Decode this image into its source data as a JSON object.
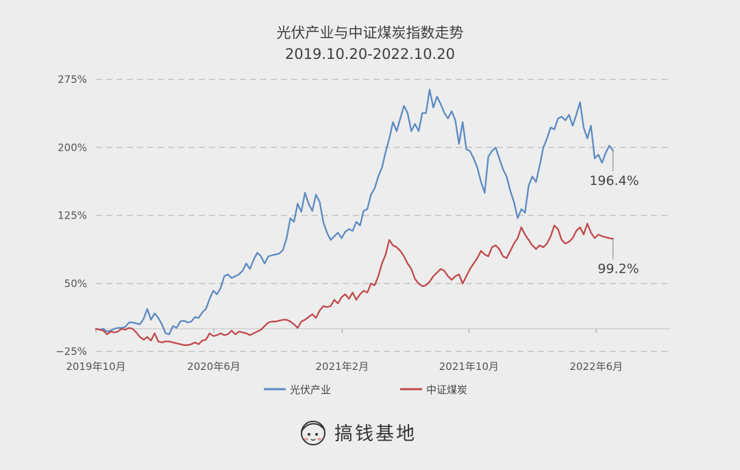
{
  "chart_data": {
    "type": "line",
    "title": "光伏产业与中证煤炭指数走势",
    "subtitle": "2019.10.20-2022.10.20",
    "xlabel": "",
    "ylabel": "",
    "ylim": [
      -25,
      275
    ],
    "yticks": [
      -25,
      50,
      125,
      200,
      275
    ],
    "ytick_labels": [
      "−25%",
      "50%",
      "125%",
      "200%",
      "275%"
    ],
    "xlim": [
      "2019-10-20",
      "2022-10-20"
    ],
    "xtick_dates": [
      "2019-10-20",
      "2020-06-01",
      "2021-02-01",
      "2021-10-01",
      "2022-06-01"
    ],
    "xtick_labels": [
      "2019年10月",
      "2020年6月",
      "2021年2月",
      "2021年10月",
      "2022年6月"
    ],
    "grid": "horizontal-dashed",
    "legend_position": "bottom",
    "series": [
      {
        "name": "光伏产业",
        "color": "#5b8ac2",
        "end_label": "196.4%",
        "points": [
          [
            "2019-10-20",
            0
          ],
          [
            "2019-10-27",
            -1
          ],
          [
            "2019-11-03",
            0
          ],
          [
            "2019-11-10",
            -3
          ],
          [
            "2019-11-17",
            -2
          ],
          [
            "2019-11-24",
            0
          ],
          [
            "2019-12-01",
            1
          ],
          [
            "2019-12-08",
            1
          ],
          [
            "2019-12-15",
            2
          ],
          [
            "2019-12-22",
            7
          ],
          [
            "2019-12-29",
            7
          ],
          [
            "2020-01-05",
            6
          ],
          [
            "2020-01-12",
            5
          ],
          [
            "2020-01-19",
            11
          ],
          [
            "2020-01-26",
            22
          ],
          [
            "2020-02-02",
            10
          ],
          [
            "2020-02-09",
            17
          ],
          [
            "2020-02-16",
            12
          ],
          [
            "2020-02-23",
            5
          ],
          [
            "2020-03-01",
            -5
          ],
          [
            "2020-03-08",
            -6
          ],
          [
            "2020-03-15",
            3
          ],
          [
            "2020-03-22",
            1
          ],
          [
            "2020-03-29",
            8
          ],
          [
            "2020-04-05",
            9
          ],
          [
            "2020-04-12",
            7
          ],
          [
            "2020-04-19",
            8
          ],
          [
            "2020-04-26",
            13
          ],
          [
            "2020-05-03",
            12
          ],
          [
            "2020-05-10",
            18
          ],
          [
            "2020-05-17",
            22
          ],
          [
            "2020-05-24",
            33
          ],
          [
            "2020-05-31",
            42
          ],
          [
            "2020-06-07",
            38
          ],
          [
            "2020-06-14",
            45
          ],
          [
            "2020-06-21",
            58
          ],
          [
            "2020-06-28",
            60
          ],
          [
            "2020-07-05",
            56
          ],
          [
            "2020-07-12",
            58
          ],
          [
            "2020-07-19",
            60
          ],
          [
            "2020-07-26",
            64
          ],
          [
            "2020-08-02",
            72
          ],
          [
            "2020-08-09",
            66
          ],
          [
            "2020-08-16",
            76
          ],
          [
            "2020-08-23",
            84
          ],
          [
            "2020-08-30",
            80
          ],
          [
            "2020-09-06",
            72
          ],
          [
            "2020-09-13",
            80
          ],
          [
            "2020-09-20",
            81
          ],
          [
            "2020-09-27",
            82
          ],
          [
            "2020-10-04",
            83
          ],
          [
            "2020-10-11",
            87
          ],
          [
            "2020-10-18",
            100
          ],
          [
            "2020-10-25",
            122
          ],
          [
            "2020-11-01",
            118
          ],
          [
            "2020-11-08",
            138
          ],
          [
            "2020-11-15",
            129
          ],
          [
            "2020-11-22",
            150
          ],
          [
            "2020-11-29",
            138
          ],
          [
            "2020-12-06",
            130
          ],
          [
            "2020-12-13",
            148
          ],
          [
            "2020-12-20",
            140
          ],
          [
            "2020-12-27",
            118
          ],
          [
            "2021-01-03",
            106
          ],
          [
            "2021-01-10",
            98
          ],
          [
            "2021-01-17",
            102
          ],
          [
            "2021-01-24",
            106
          ],
          [
            "2021-01-31",
            100
          ],
          [
            "2021-02-07",
            107
          ],
          [
            "2021-02-14",
            110
          ],
          [
            "2021-02-21",
            108
          ],
          [
            "2021-02-28",
            118
          ],
          [
            "2021-03-07",
            114
          ],
          [
            "2021-03-14",
            130
          ],
          [
            "2021-03-21",
            132
          ],
          [
            "2021-03-28",
            148
          ],
          [
            "2021-04-04",
            155
          ],
          [
            "2021-04-11",
            168
          ],
          [
            "2021-04-18",
            178
          ],
          [
            "2021-04-25",
            195
          ],
          [
            "2021-05-02",
            210
          ],
          [
            "2021-05-09",
            228
          ],
          [
            "2021-05-16",
            218
          ],
          [
            "2021-05-23",
            232
          ],
          [
            "2021-05-30",
            246
          ],
          [
            "2021-06-06",
            238
          ],
          [
            "2021-06-13",
            218
          ],
          [
            "2021-06-20",
            226
          ],
          [
            "2021-06-27",
            218
          ],
          [
            "2021-07-04",
            238
          ],
          [
            "2021-07-11",
            238
          ],
          [
            "2021-07-18",
            264
          ],
          [
            "2021-07-25",
            244
          ],
          [
            "2021-08-01",
            256
          ],
          [
            "2021-08-08",
            248
          ],
          [
            "2021-08-15",
            238
          ],
          [
            "2021-08-22",
            232
          ],
          [
            "2021-08-29",
            240
          ],
          [
            "2021-09-05",
            230
          ],
          [
            "2021-09-12",
            204
          ],
          [
            "2021-09-19",
            228
          ],
          [
            "2021-09-26",
            198
          ],
          [
            "2021-10-03",
            196
          ],
          [
            "2021-10-10",
            188
          ],
          [
            "2021-10-17",
            178
          ],
          [
            "2021-10-24",
            162
          ],
          [
            "2021-10-31",
            150
          ],
          [
            "2021-11-07",
            190
          ],
          [
            "2021-11-14",
            196
          ],
          [
            "2021-11-21",
            200
          ],
          [
            "2021-11-28",
            188
          ],
          [
            "2021-12-05",
            176
          ],
          [
            "2021-12-12",
            168
          ],
          [
            "2021-12-19",
            152
          ],
          [
            "2021-12-26",
            140
          ],
          [
            "2022-01-02",
            122
          ],
          [
            "2022-01-09",
            132
          ],
          [
            "2022-01-16",
            128
          ],
          [
            "2022-01-23",
            158
          ],
          [
            "2022-01-30",
            168
          ],
          [
            "2022-02-06",
            162
          ],
          [
            "2022-02-13",
            180
          ],
          [
            "2022-02-20",
            200
          ],
          [
            "2022-02-27",
            210
          ],
          [
            "2022-03-06",
            222
          ],
          [
            "2022-03-13",
            220
          ],
          [
            "2022-03-20",
            232
          ],
          [
            "2022-03-27",
            234
          ],
          [
            "2022-04-03",
            230
          ],
          [
            "2022-04-10",
            236
          ],
          [
            "2022-04-17",
            224
          ],
          [
            "2022-04-24",
            236
          ],
          [
            "2022-05-01",
            250
          ],
          [
            "2022-05-08",
            222
          ],
          [
            "2022-05-15",
            210
          ],
          [
            "2022-05-22",
            224
          ],
          [
            "2022-05-29",
            188
          ],
          [
            "2022-06-05",
            192
          ],
          [
            "2022-06-12",
            183
          ],
          [
            "2022-06-19",
            194
          ],
          [
            "2022-06-26",
            202
          ],
          [
            "2022-07-03",
            196.4
          ]
        ]
      },
      {
        "name": "中证煤炭",
        "color": "#c1494a",
        "end_label": "99.2%",
        "points": [
          [
            "2019-10-20",
            0
          ],
          [
            "2019-10-27",
            -1
          ],
          [
            "2019-11-03",
            -2
          ],
          [
            "2019-11-10",
            -6
          ],
          [
            "2019-11-17",
            -3
          ],
          [
            "2019-11-24",
            -4
          ],
          [
            "2019-12-01",
            -3
          ],
          [
            "2019-12-08",
            0
          ],
          [
            "2019-12-15",
            -1
          ],
          [
            "2019-12-22",
            1
          ],
          [
            "2019-12-29",
            0
          ],
          [
            "2020-01-05",
            -4
          ],
          [
            "2020-01-12",
            -9
          ],
          [
            "2020-01-19",
            -12
          ],
          [
            "2020-01-26",
            -9
          ],
          [
            "2020-02-02",
            -13
          ],
          [
            "2020-02-09",
            -5
          ],
          [
            "2020-02-16",
            -14
          ],
          [
            "2020-02-23",
            -15
          ],
          [
            "2020-03-01",
            -14
          ],
          [
            "2020-03-08",
            -14
          ],
          [
            "2020-03-15",
            -15
          ],
          [
            "2020-03-22",
            -16
          ],
          [
            "2020-03-29",
            -17
          ],
          [
            "2020-04-05",
            -18
          ],
          [
            "2020-04-12",
            -18
          ],
          [
            "2020-04-19",
            -17
          ],
          [
            "2020-04-26",
            -15
          ],
          [
            "2020-05-03",
            -17
          ],
          [
            "2020-05-10",
            -13
          ],
          [
            "2020-05-17",
            -12
          ],
          [
            "2020-05-24",
            -5
          ],
          [
            "2020-05-31",
            -8
          ],
          [
            "2020-06-07",
            -7
          ],
          [
            "2020-06-14",
            -5
          ],
          [
            "2020-06-21",
            -7
          ],
          [
            "2020-06-28",
            -6
          ],
          [
            "2020-07-05",
            -2
          ],
          [
            "2020-07-12",
            -6
          ],
          [
            "2020-07-19",
            -3
          ],
          [
            "2020-07-26",
            -4
          ],
          [
            "2020-08-02",
            -5
          ],
          [
            "2020-08-09",
            -7
          ],
          [
            "2020-08-16",
            -5
          ],
          [
            "2020-08-23",
            -3
          ],
          [
            "2020-08-30",
            -1
          ],
          [
            "2020-09-06",
            3
          ],
          [
            "2020-09-13",
            7
          ],
          [
            "2020-09-20",
            8
          ],
          [
            "2020-09-27",
            8
          ],
          [
            "2020-10-04",
            9
          ],
          [
            "2020-10-11",
            10
          ],
          [
            "2020-10-18",
            10
          ],
          [
            "2020-10-25",
            8
          ],
          [
            "2020-11-01",
            5
          ],
          [
            "2020-11-08",
            1
          ],
          [
            "2020-11-15",
            8
          ],
          [
            "2020-11-22",
            10
          ],
          [
            "2020-11-29",
            13
          ],
          [
            "2020-12-06",
            16
          ],
          [
            "2020-12-13",
            12
          ],
          [
            "2020-12-20",
            20
          ],
          [
            "2020-12-27",
            25
          ],
          [
            "2021-01-03",
            24
          ],
          [
            "2021-01-10",
            25
          ],
          [
            "2021-01-17",
            32
          ],
          [
            "2021-01-24",
            28
          ],
          [
            "2021-01-31",
            35
          ],
          [
            "2021-02-07",
            38
          ],
          [
            "2021-02-14",
            33
          ],
          [
            "2021-02-21",
            40
          ],
          [
            "2021-02-28",
            32
          ],
          [
            "2021-03-07",
            38
          ],
          [
            "2021-03-14",
            42
          ],
          [
            "2021-03-21",
            40
          ],
          [
            "2021-03-28",
            50
          ],
          [
            "2021-04-04",
            48
          ],
          [
            "2021-04-11",
            58
          ],
          [
            "2021-04-18",
            72
          ],
          [
            "2021-04-25",
            82
          ],
          [
            "2021-05-02",
            98
          ],
          [
            "2021-05-09",
            92
          ],
          [
            "2021-05-16",
            90
          ],
          [
            "2021-05-23",
            86
          ],
          [
            "2021-05-30",
            80
          ],
          [
            "2021-06-06",
            72
          ],
          [
            "2021-06-13",
            66
          ],
          [
            "2021-06-20",
            55
          ],
          [
            "2021-06-27",
            50
          ],
          [
            "2021-07-04",
            47
          ],
          [
            "2021-07-11",
            48
          ],
          [
            "2021-07-18",
            52
          ],
          [
            "2021-07-25",
            58
          ],
          [
            "2021-08-01",
            62
          ],
          [
            "2021-08-08",
            66
          ],
          [
            "2021-08-15",
            64
          ],
          [
            "2021-08-22",
            58
          ],
          [
            "2021-08-29",
            54
          ],
          [
            "2021-09-05",
            58
          ],
          [
            "2021-09-12",
            60
          ],
          [
            "2021-09-19",
            50
          ],
          [
            "2021-09-26",
            58
          ],
          [
            "2021-10-03",
            66
          ],
          [
            "2021-10-10",
            72
          ],
          [
            "2021-10-17",
            78
          ],
          [
            "2021-10-24",
            86
          ],
          [
            "2021-10-31",
            82
          ],
          [
            "2021-11-07",
            80
          ],
          [
            "2021-11-14",
            90
          ],
          [
            "2021-11-21",
            92
          ],
          [
            "2021-11-28",
            88
          ],
          [
            "2021-12-05",
            80
          ],
          [
            "2021-12-12",
            78
          ],
          [
            "2021-12-19",
            86
          ],
          [
            "2021-12-26",
            94
          ],
          [
            "2022-01-02",
            100
          ],
          [
            "2022-01-09",
            112
          ],
          [
            "2022-01-16",
            104
          ],
          [
            "2022-01-23",
            98
          ],
          [
            "2022-01-30",
            92
          ],
          [
            "2022-02-06",
            88
          ],
          [
            "2022-02-13",
            92
          ],
          [
            "2022-02-20",
            90
          ],
          [
            "2022-02-27",
            94
          ],
          [
            "2022-03-06",
            102
          ],
          [
            "2022-03-13",
            114
          ],
          [
            "2022-03-20",
            110
          ],
          [
            "2022-03-27",
            98
          ],
          [
            "2022-04-03",
            94
          ],
          [
            "2022-04-10",
            96
          ],
          [
            "2022-04-17",
            100
          ],
          [
            "2022-04-24",
            108
          ],
          [
            "2022-05-01",
            112
          ],
          [
            "2022-05-08",
            104
          ],
          [
            "2022-05-15",
            116
          ],
          [
            "2022-05-22",
            106
          ],
          [
            "2022-05-29",
            100
          ],
          [
            "2022-06-05",
            104
          ],
          [
            "2022-06-12",
            102
          ],
          [
            "2022-06-19",
            101
          ],
          [
            "2022-06-26",
            100
          ],
          [
            "2022-07-03",
            99.2
          ]
        ]
      }
    ]
  },
  "brand": {
    "name": "搞钱基地",
    "icon": "cartoon-face-logo"
  }
}
